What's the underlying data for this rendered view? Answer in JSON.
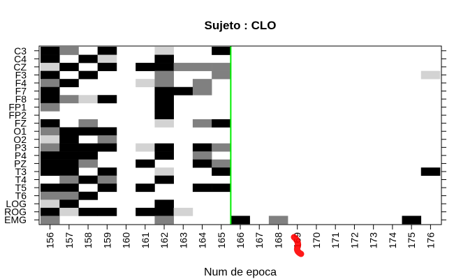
{
  "chart_data": {
    "type": "heatmap",
    "title": "Sujeto : CLO",
    "xlabel": "Num de epoca",
    "ylabel": "",
    "x_categories": [
      "156",
      "157",
      "158",
      "159",
      "160",
      "161",
      "162",
      "163",
      "164",
      "165",
      "166",
      "167",
      "168",
      "169",
      "170",
      "171",
      "172",
      "173",
      "174",
      "175",
      "176"
    ],
    "y_categories": [
      "C3",
      "C4",
      "CZ",
      "F3",
      "F4",
      "F7",
      "F8",
      "FP1",
      "FP2",
      "FZ",
      "O1",
      "O2",
      "P3",
      "P4",
      "PZ",
      "T3",
      "T4",
      "T5",
      "T6",
      "LOG",
      "ROG",
      "EMG"
    ],
    "levels": {
      "0": "#ffffff",
      "1": "#d3d3d3",
      "2": "#808080",
      "3": "#000000"
    },
    "values": [
      [
        3,
        2,
        0,
        3,
        0,
        0,
        1,
        0,
        0,
        3,
        0,
        0,
        0,
        0,
        0,
        0,
        0,
        0,
        0,
        0,
        0
      ],
      [
        3,
        0,
        3,
        1,
        0,
        0,
        3,
        0,
        0,
        0,
        0,
        0,
        0,
        0,
        0,
        0,
        0,
        0,
        0,
        0,
        0
      ],
      [
        1,
        3,
        0,
        3,
        0,
        3,
        3,
        2,
        2,
        2,
        0,
        0,
        0,
        0,
        0,
        0,
        0,
        0,
        0,
        0,
        0
      ],
      [
        3,
        0,
        3,
        0,
        0,
        0,
        2,
        0,
        0,
        2,
        0,
        0,
        0,
        0,
        0,
        0,
        0,
        0,
        0,
        0,
        1
      ],
      [
        2,
        3,
        0,
        0,
        0,
        1,
        2,
        0,
        2,
        0,
        0,
        0,
        0,
        0,
        0,
        0,
        0,
        0,
        0,
        0,
        0
      ],
      [
        3,
        0,
        0,
        0,
        0,
        0,
        3,
        3,
        2,
        0,
        0,
        0,
        0,
        0,
        0,
        0,
        0,
        0,
        0,
        0,
        0
      ],
      [
        3,
        2,
        1,
        3,
        0,
        0,
        3,
        0,
        0,
        0,
        0,
        0,
        0,
        0,
        0,
        0,
        0,
        0,
        0,
        0,
        0
      ],
      [
        2,
        0,
        0,
        0,
        0,
        0,
        3,
        0,
        0,
        0,
        0,
        0,
        0,
        0,
        0,
        0,
        0,
        0,
        0,
        0,
        0
      ],
      [
        0,
        0,
        0,
        0,
        0,
        0,
        3,
        0,
        0,
        0,
        0,
        0,
        0,
        0,
        0,
        0,
        0,
        0,
        0,
        0,
        0
      ],
      [
        3,
        0,
        2,
        0,
        0,
        0,
        1,
        0,
        2,
        3,
        0,
        0,
        0,
        0,
        0,
        0,
        0,
        0,
        0,
        0,
        0
      ],
      [
        2,
        3,
        3,
        3,
        0,
        0,
        0,
        0,
        0,
        0,
        0,
        0,
        0,
        0,
        0,
        0,
        0,
        0,
        0,
        0,
        0
      ],
      [
        1,
        3,
        0,
        2,
        0,
        0,
        0,
        0,
        0,
        0,
        0,
        0,
        0,
        0,
        0,
        0,
        0,
        0,
        0,
        0,
        0
      ],
      [
        2,
        3,
        3,
        3,
        0,
        1,
        3,
        0,
        3,
        2,
        0,
        0,
        0,
        0,
        0,
        0,
        0,
        0,
        0,
        0,
        0
      ],
      [
        3,
        3,
        3,
        0,
        0,
        0,
        3,
        0,
        2,
        0,
        0,
        0,
        0,
        0,
        0,
        0,
        0,
        0,
        0,
        0,
        0
      ],
      [
        3,
        3,
        2,
        0,
        0,
        3,
        0,
        0,
        3,
        2,
        0,
        0,
        0,
        0,
        0,
        0,
        0,
        0,
        0,
        0,
        0
      ],
      [
        3,
        3,
        0,
        3,
        0,
        0,
        1,
        0,
        0,
        3,
        0,
        0,
        0,
        0,
        0,
        0,
        0,
        0,
        0,
        0,
        3
      ],
      [
        0,
        2,
        3,
        2,
        0,
        0,
        3,
        0,
        0,
        0,
        0,
        0,
        0,
        0,
        0,
        0,
        0,
        0,
        0,
        0,
        0
      ],
      [
        3,
        3,
        0,
        3,
        0,
        3,
        0,
        0,
        3,
        3,
        0,
        0,
        0,
        0,
        0,
        0,
        0,
        0,
        0,
        0,
        0
      ],
      [
        2,
        2,
        3,
        0,
        0,
        0,
        0,
        0,
        0,
        0,
        0,
        0,
        0,
        0,
        0,
        0,
        0,
        0,
        0,
        0,
        0
      ],
      [
        1,
        3,
        0,
        0,
        0,
        0,
        3,
        0,
        0,
        0,
        0,
        0,
        0,
        0,
        0,
        0,
        0,
        0,
        0,
        0,
        0
      ],
      [
        3,
        1,
        3,
        3,
        0,
        3,
        3,
        1,
        0,
        0,
        0,
        0,
        0,
        0,
        0,
        0,
        0,
        0,
        0,
        0,
        0
      ],
      [
        2,
        0,
        0,
        0,
        0,
        0,
        2,
        0,
        0,
        0,
        3,
        0,
        2,
        0,
        0,
        0,
        0,
        0,
        0,
        3,
        0
      ]
    ],
    "vline": {
      "x": "165",
      "color": "#00ee00"
    },
    "annotation_color": "#ff0000",
    "grid": false,
    "legend": "none"
  }
}
